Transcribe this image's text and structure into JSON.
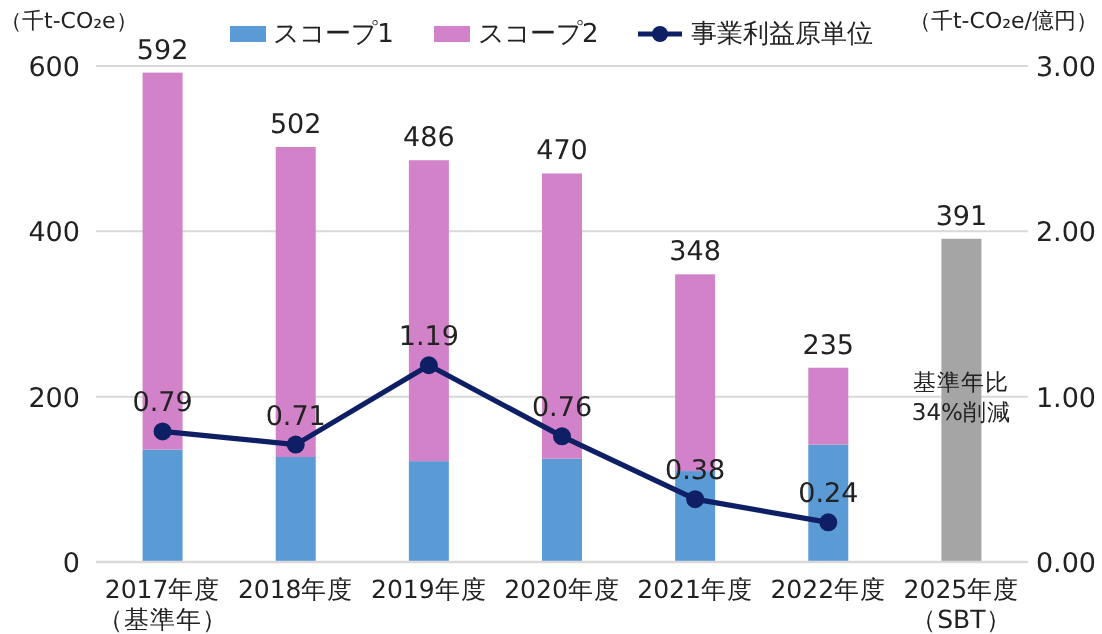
{
  "chart_data": {
    "type": "bar",
    "stacked": true,
    "ylabel": "（千t-CO₂e）",
    "y2label": "（千t-CO₂e/億円）",
    "categories": [
      "2017年度（基準年）",
      "2018年度",
      "2019年度",
      "2020年度",
      "2021年度",
      "2022年度",
      "2025年度（SBT）"
    ],
    "series": [
      {
        "name": "スコープ1",
        "color": "#5b9bd5",
        "values": [
          136,
          127,
          122,
          125,
          110,
          142,
          null
        ]
      },
      {
        "name": "スコープ2",
        "color": "#d282c8",
        "values": [
          456,
          375,
          364,
          345,
          238,
          93,
          null
        ]
      },
      {
        "color": "#a5a5a5",
        "values": [
          null,
          null,
          null,
          null,
          null,
          null,
          391
        ]
      },
      {
        "name": "事業利益原単位",
        "type": "line",
        "axis": "y2",
        "color": "#0f1f66",
        "marker": "circle",
        "values": [
          0.79,
          0.71,
          1.19,
          0.76,
          0.38,
          0.24,
          null
        ],
        "value_labels": [
          "0.79",
          "0.71",
          "1.19",
          "0.76",
          "0.38",
          "0.24",
          null
        ]
      }
    ],
    "totals": [
      "592",
      "502",
      "486",
      "470",
      "348",
      "235",
      "391"
    ],
    "annotations": [
      "基準年比34%削減"
    ],
    "ylim": [
      0,
      600
    ],
    "yticks": [
      0,
      200,
      400,
      600
    ],
    "y2lim": [
      0,
      3
    ],
    "y2ticks": [
      {
        "value": 0,
        "label": "0.00"
      },
      {
        "value": 1,
        "label": "1.00"
      },
      {
        "value": 2,
        "label": "2.00"
      },
      {
        "value": 3,
        "label": "3.00"
      }
    ],
    "grid": "y",
    "legend": "top"
  }
}
